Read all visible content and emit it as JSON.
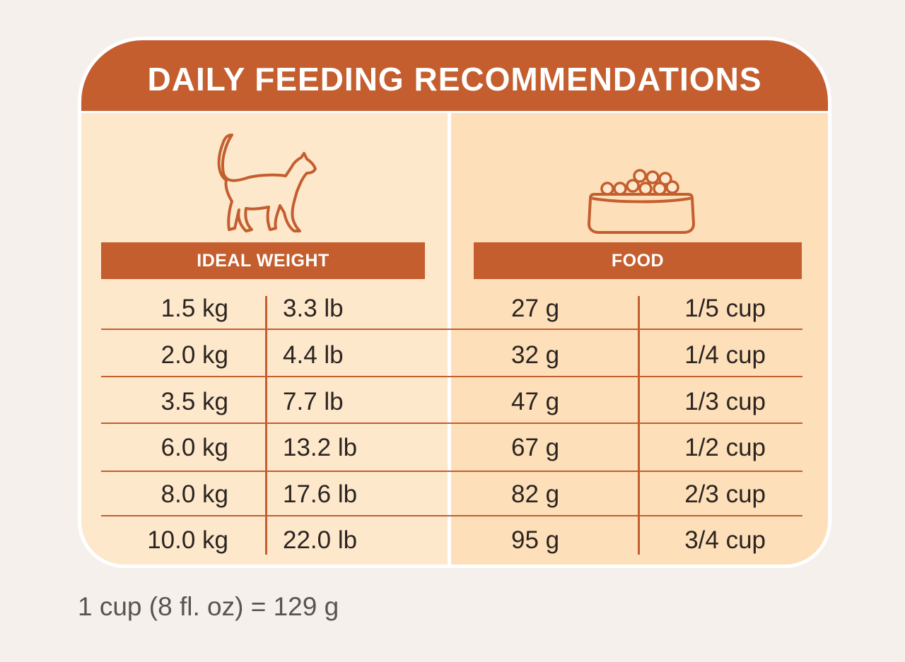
{
  "title": "DAILY FEEDING RECOMMENDATIONS",
  "columns": {
    "weight": "IDEAL WEIGHT",
    "food": "FOOD"
  },
  "icons": {
    "weight": "cat-icon",
    "food": "food-bowl-icon"
  },
  "rows": [
    {
      "kg": "1.5 kg",
      "lb": "3.3 lb",
      "g": "27 g",
      "cup": "1/5 cup"
    },
    {
      "kg": "2.0 kg",
      "lb": "4.4 lb",
      "g": "32 g",
      "cup": "1/4 cup"
    },
    {
      "kg": "3.5 kg",
      "lb": "7.7 lb",
      "g": "47 g",
      "cup": "1/3 cup"
    },
    {
      "kg": "6.0 kg",
      "lb": "13.2 lb",
      "g": "67 g",
      "cup": "1/2 cup"
    },
    {
      "kg": "8.0 kg",
      "lb": "17.6 lb",
      "g": "82 g",
      "cup": "2/3 cup"
    },
    {
      "kg": "10.0 kg",
      "lb": "22.0 lb",
      "g": "95 g",
      "cup": "3/4 cup"
    }
  ],
  "note": "1 cup (8 fl. oz)  = 129 g",
  "colors": {
    "accent": "#c45e2e",
    "panel_left": "#fde8cc",
    "panel_right": "#fddfb9",
    "background": "#f5f0ec"
  }
}
